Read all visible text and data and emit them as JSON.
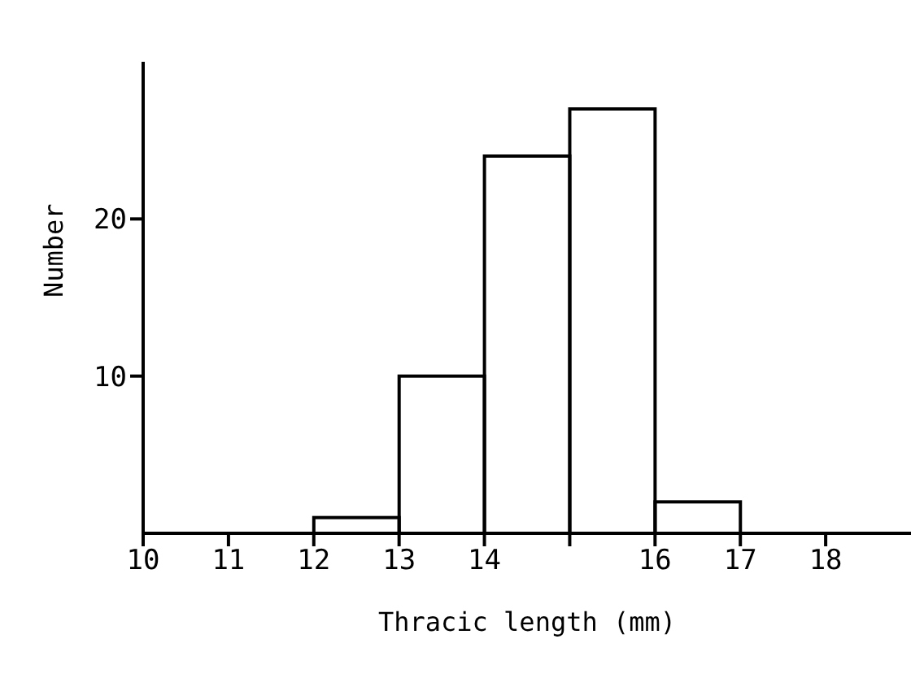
{
  "chart_data": {
    "type": "histogram",
    "xlabel": "Thracic length (mm)",
    "ylabel": "Number",
    "bins": [
      10,
      11,
      12,
      13,
      14,
      15,
      16,
      17,
      18
    ],
    "values": [
      0,
      0,
      1,
      10,
      24,
      27,
      2,
      0
    ],
    "color": "#000000",
    "xlim": [
      10,
      19
    ],
    "xticks": [
      10,
      11,
      12,
      13,
      14,
      {
        "value": 15,
        "label": null
      },
      16,
      17,
      18
    ],
    "ylim": [
      0,
      30
    ],
    "yticks": [
      10,
      20
    ],
    "grid": false,
    "legend": false
  }
}
